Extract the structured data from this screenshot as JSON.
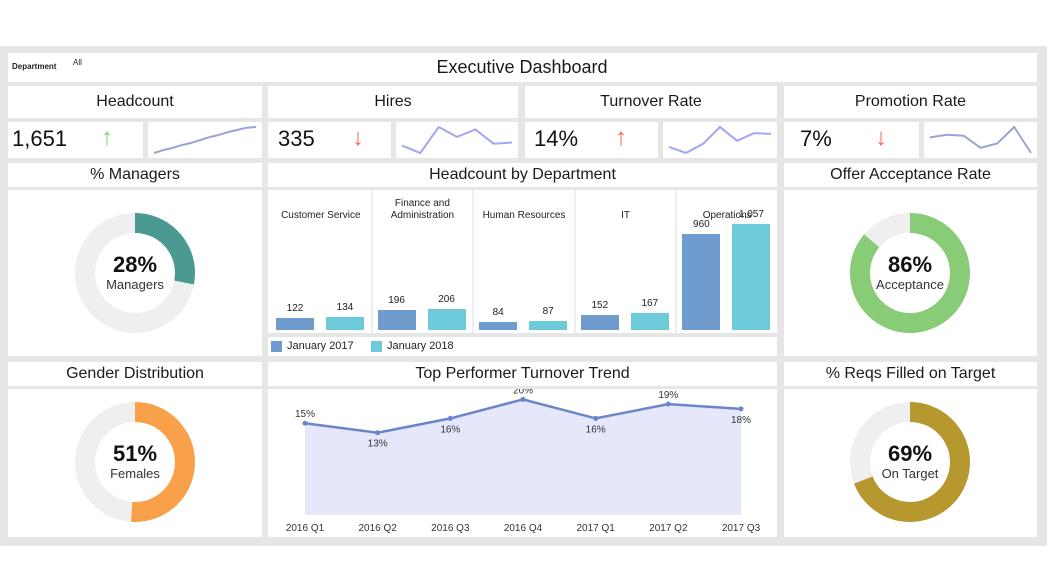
{
  "filter": {
    "label": "Department",
    "value": "All"
  },
  "header": {
    "title": "Executive Dashboard"
  },
  "kpis": [
    {
      "title": "Headcount",
      "value": "1,651",
      "trend": "up",
      "arrow": "↑",
      "arrow_color": "#7fd07a",
      "sparkline": [
        0,
        8,
        14,
        22,
        28,
        36,
        44,
        50,
        58,
        64,
        70,
        72
      ]
    },
    {
      "title": "Hires",
      "value": "335",
      "trend": "down",
      "arrow": "↓",
      "arrow_color": "#f26b5b",
      "sparkline": [
        30,
        18,
        60,
        44,
        56,
        33,
        35
      ]
    },
    {
      "title": "Turnover Rate",
      "value": "14%",
      "trend": "up",
      "arrow": "↑",
      "arrow_color": "#f26b5b",
      "sparkline": [
        22,
        14,
        26,
        48,
        30,
        40,
        39
      ]
    },
    {
      "title": "Promotion Rate",
      "value": "7%",
      "trend": "down",
      "arrow": "↓",
      "arrow_color": "#f26b5b",
      "sparkline": [
        40,
        43,
        42,
        28,
        33,
        52,
        22
      ]
    }
  ],
  "donuts": {
    "managers": {
      "title": "% Managers",
      "value": 28,
      "label": "28%",
      "sub": "Managers",
      "color": "#4a9a92"
    },
    "offer": {
      "title": "Offer Acceptance Rate",
      "value": 86,
      "label": "86%",
      "sub": "Acceptance",
      "color": "#88cc78"
    },
    "gender": {
      "title": "Gender Distribution",
      "value": 51,
      "label": "51%",
      "sub": "Females",
      "color": "#f9a04a"
    },
    "reqs": {
      "title": "% Reqs Filled on Target",
      "value": 69,
      "label": "69%",
      "sub": "On Target",
      "color": "#b6982f"
    }
  },
  "chart_data": [
    {
      "type": "bar",
      "title": "Headcount by Department",
      "categories": [
        "Customer Service",
        "Finance and Administration",
        "Human Resources",
        "IT",
        "Operations"
      ],
      "category_lines": [
        [
          "Customer Service"
        ],
        [
          "Finance and",
          "Administration"
        ],
        [
          "Human Resources"
        ],
        [
          "IT"
        ],
        [
          "Operations"
        ]
      ],
      "series": [
        {
          "name": "January 2017",
          "color": "#6f9bcf",
          "values": [
            122,
            196,
            84,
            152,
            960
          ],
          "labels": [
            "122",
            "196",
            "84",
            "152",
            "960"
          ]
        },
        {
          "name": "January 2018",
          "color": "#6dcad9",
          "values": [
            134,
            206,
            87,
            167,
            1057
          ],
          "labels": [
            "134",
            "206",
            "87",
            "167",
            "1,057"
          ]
        }
      ],
      "ylim": [
        0,
        1100
      ],
      "legend": "bottom-left"
    },
    {
      "type": "area",
      "title": "Top Performer Turnover Trend",
      "x": [
        "2016 Q1",
        "2016 Q2",
        "2016 Q3",
        "2016 Q4",
        "2017 Q1",
        "2017 Q2",
        "2017 Q3"
      ],
      "values": [
        15,
        13,
        16,
        20,
        16,
        19,
        18
      ],
      "labels": [
        "15%",
        "13%",
        "16%",
        "20%",
        "16%",
        "19%",
        "18%"
      ],
      "label_position": [
        "above",
        "below",
        "below",
        "above",
        "below",
        "above",
        "below"
      ],
      "ylim": [
        0,
        21
      ],
      "line_color": "#6a86c8",
      "fill_color": "#e6e7fb"
    }
  ]
}
